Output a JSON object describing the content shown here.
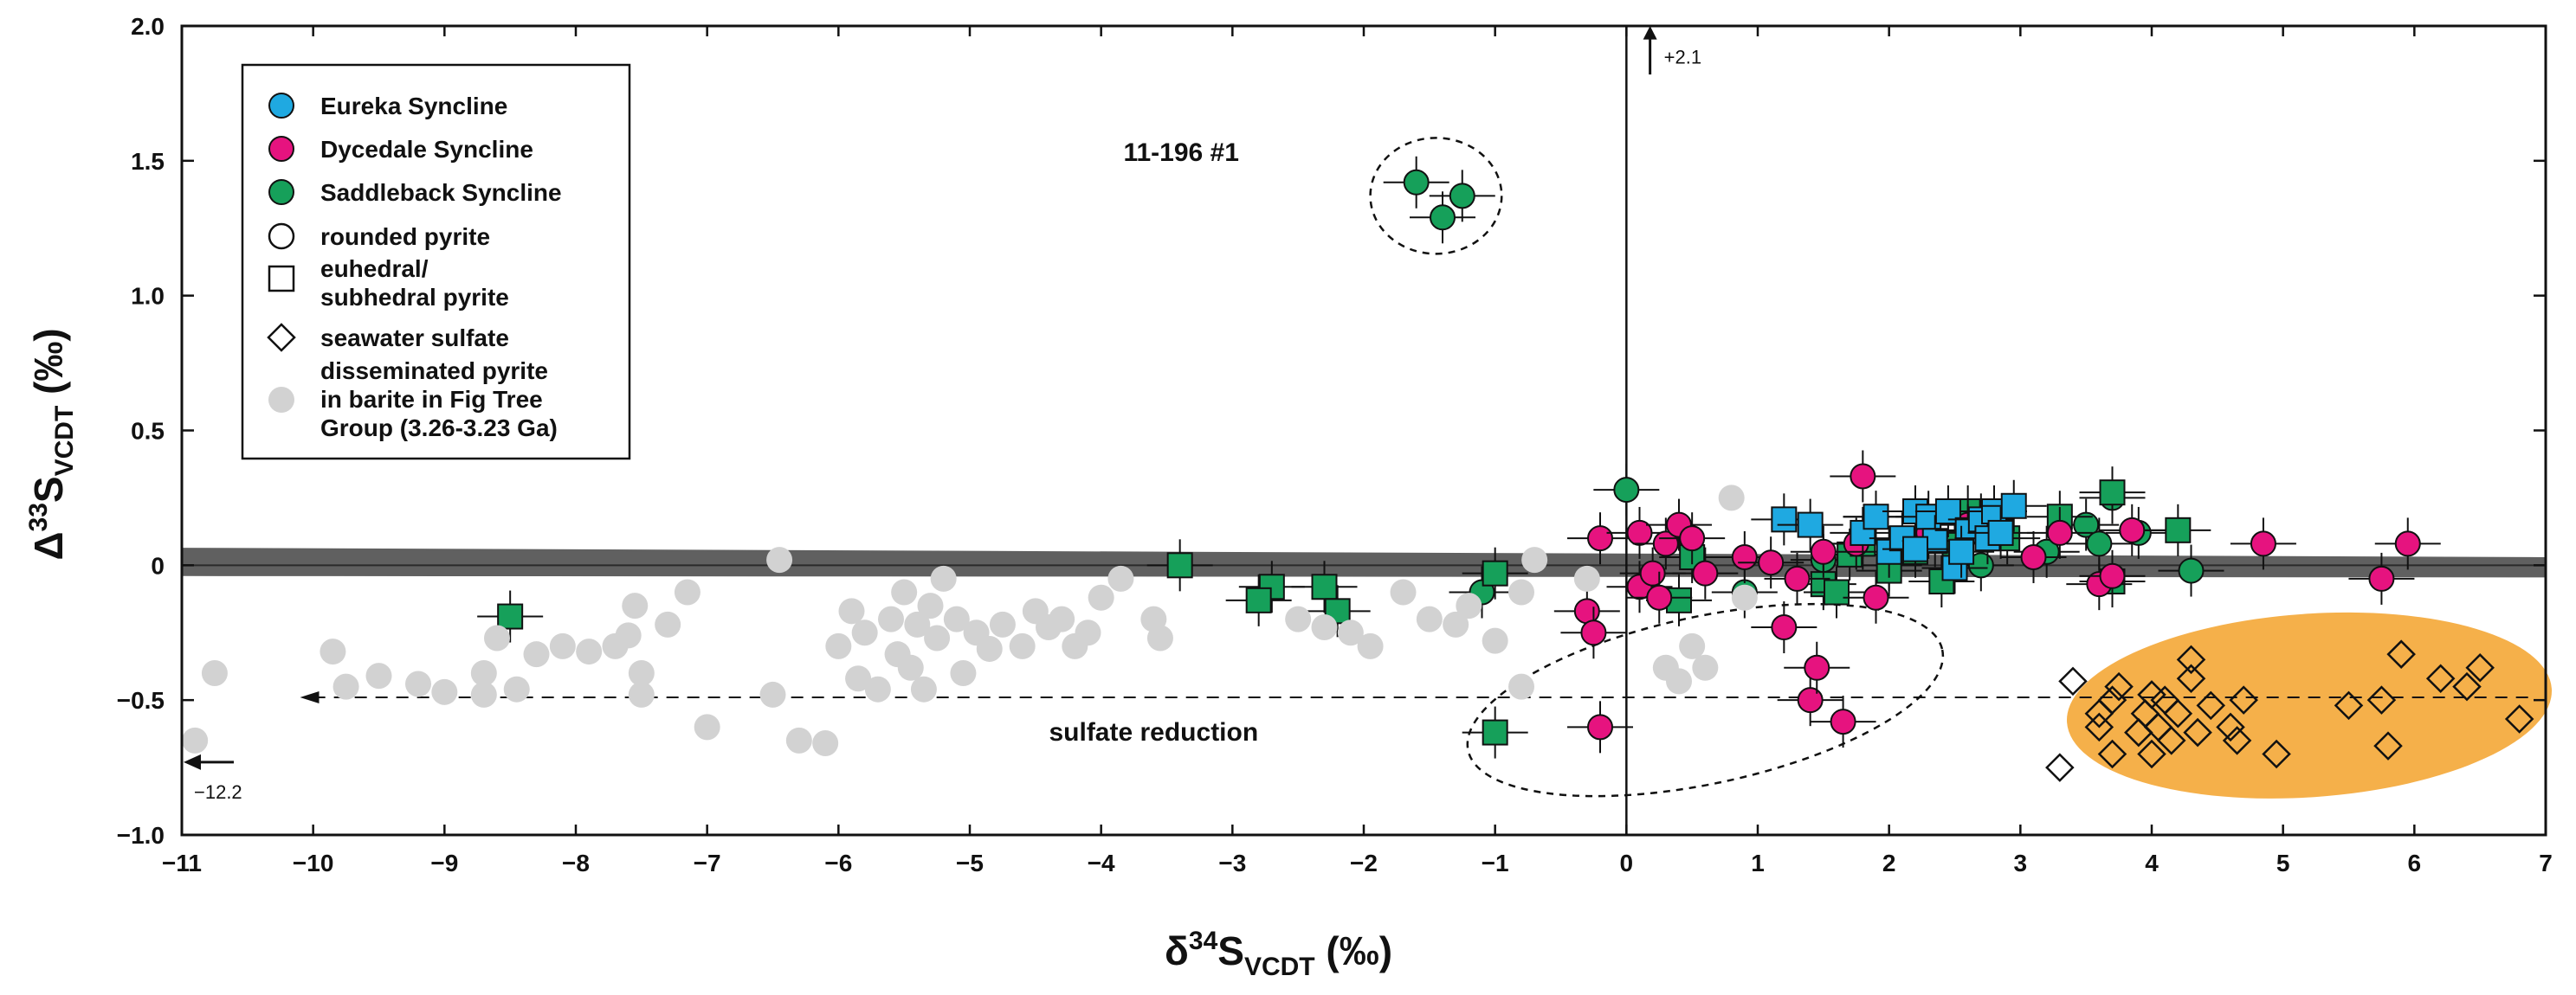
{
  "chart_data": {
    "type": "scatter",
    "title": "",
    "xlabel": {
      "main": "δ",
      "sup": "34",
      "mid": "S",
      "sub": "VCDT",
      "unit": " (‰)"
    },
    "ylabel": {
      "main": "Δ",
      "sup": "33",
      "mid": "S",
      "sub": "VCDT",
      "unit": " (‰)"
    },
    "xlim": [
      -11,
      7
    ],
    "ylim": [
      -1.0,
      2.0
    ],
    "xticks": [
      -11,
      -10,
      -9,
      -8,
      -7,
      -6,
      -5,
      -4,
      -3,
      -2,
      -1,
      0,
      1,
      2,
      3,
      4,
      5,
      6,
      7
    ],
    "xtick_labels": [
      "−11",
      "−10",
      "−9",
      "−8",
      "−7",
      "−6",
      "−5",
      "−4",
      "−3",
      "−2",
      "−1",
      "0",
      "1",
      "2",
      "3",
      "4",
      "5",
      "6",
      "7"
    ],
    "yticks": [
      -1.0,
      -0.5,
      0,
      0.5,
      1.0,
      1.5,
      2.0
    ],
    "ytick_labels": [
      "−1.0",
      "−0.5",
      "0",
      "0.5",
      "1.0",
      "1.5",
      "2.0"
    ],
    "colors": {
      "eureka": "#1fa9e1",
      "dycedale": "#e6137f",
      "saddleback": "#16a05a",
      "fig_tree": "#d2d2d2",
      "seawater_field": "#f5b04a",
      "mdf_band": "#606060"
    },
    "legend": {
      "position": "top-left",
      "entries": [
        {
          "key": "eureka",
          "label": "Eureka Syncline",
          "marker": "circle",
          "color": "#1fa9e1"
        },
        {
          "key": "dycedale",
          "label": "Dycedale Syncline",
          "marker": "circle",
          "color": "#e6137f"
        },
        {
          "key": "saddleback",
          "label": "Saddleback Syncline",
          "marker": "circle",
          "color": "#16a05a"
        },
        {
          "key": "rounded",
          "label": "rounded pyrite",
          "marker": "circle-open"
        },
        {
          "key": "euhedral",
          "label": [
            "euhedral/",
            "subhedral pyrite"
          ],
          "marker": "square-open"
        },
        {
          "key": "seawater",
          "label": "seawater sulfate",
          "marker": "diamond-open"
        },
        {
          "key": "figtree",
          "label": [
            "disseminated pyrite",
            "in barite in Fig Tree",
            "Group (3.26-3.23 Ga)"
          ],
          "marker": "circle-gray"
        }
      ]
    },
    "annotations": {
      "cluster_label": "11-196 #1",
      "sulfate_reduction": "sulfate reduction",
      "arrow_up_label": "+2.1",
      "arrow_left_label": "−12.2"
    },
    "series": [
      {
        "name": "Saddleback Syncline — rounded pyrite",
        "marker": "circle",
        "color": "#16a05a",
        "points": [
          [
            -1.6,
            1.42
          ],
          [
            -1.4,
            1.29
          ],
          [
            -1.25,
            1.37
          ],
          [
            0,
            0.28
          ],
          [
            -1.1,
            -0.1
          ],
          [
            0.9,
            -0.1
          ],
          [
            1.5,
            0.02
          ],
          [
            2.0,
            0.0
          ],
          [
            3.2,
            0.05
          ],
          [
            3.5,
            0.15
          ],
          [
            3.6,
            0.08
          ],
          [
            3.7,
            0.25
          ],
          [
            4.3,
            -0.02
          ],
          [
            3.9,
            0.12
          ],
          [
            2.7,
            0.0
          ]
        ]
      },
      {
        "name": "Saddleback Syncline — euhedral pyrite",
        "marker": "square",
        "color": "#16a05a",
        "points": [
          [
            -8.5,
            -0.19
          ],
          [
            -3.4,
            0.0
          ],
          [
            -2.7,
            -0.08
          ],
          [
            -2.8,
            -0.13
          ],
          [
            -2.3,
            -0.08
          ],
          [
            -2.2,
            -0.17
          ],
          [
            -1.0,
            -0.03
          ],
          [
            -1.0,
            -0.62
          ],
          [
            0.4,
            -0.13
          ],
          [
            0.5,
            0.03
          ],
          [
            1.5,
            -0.07
          ],
          [
            1.6,
            -0.1
          ],
          [
            1.7,
            0.04
          ],
          [
            1.8,
            0.08
          ],
          [
            2.0,
            -0.02
          ],
          [
            2.2,
            0.05
          ],
          [
            2.5,
            0.08
          ],
          [
            2.6,
            0.2
          ],
          [
            2.9,
            0.1
          ],
          [
            3.3,
            0.18
          ],
          [
            3.7,
            0.27
          ],
          [
            3.7,
            -0.06
          ],
          [
            4.2,
            0.13
          ],
          [
            2.4,
            -0.06
          ]
        ]
      },
      {
        "name": "Dycedale Syncline — rounded pyrite",
        "marker": "circle",
        "color": "#e6137f",
        "points": [
          [
            -0.2,
            0.1
          ],
          [
            -0.3,
            -0.17
          ],
          [
            -0.25,
            -0.25
          ],
          [
            -0.2,
            -0.6
          ],
          [
            0.1,
            -0.08
          ],
          [
            0.1,
            0.12
          ],
          [
            0.3,
            0.08
          ],
          [
            0.4,
            0.15
          ],
          [
            0.5,
            0.1
          ],
          [
            0.6,
            -0.03
          ],
          [
            0.9,
            0.03
          ],
          [
            1.1,
            0.01
          ],
          [
            1.2,
            -0.23
          ],
          [
            1.3,
            -0.05
          ],
          [
            1.4,
            -0.5
          ],
          [
            1.45,
            -0.38
          ],
          [
            1.65,
            -0.58
          ],
          [
            1.75,
            0.08
          ],
          [
            1.8,
            0.33
          ],
          [
            1.9,
            0.18
          ],
          [
            1.9,
            -0.12
          ],
          [
            2.3,
            0.12
          ],
          [
            2.6,
            0.15
          ],
          [
            3.1,
            0.03
          ],
          [
            3.3,
            0.12
          ],
          [
            3.6,
            -0.07
          ],
          [
            3.7,
            -0.04
          ],
          [
            3.85,
            0.13
          ],
          [
            4.85,
            0.08
          ],
          [
            5.75,
            -0.05
          ],
          [
            5.95,
            0.08
          ],
          [
            0.2,
            -0.03
          ],
          [
            0.25,
            -0.12
          ],
          [
            1.5,
            0.05
          ]
        ]
      },
      {
        "name": "Eureka Syncline — euhedral pyrite",
        "marker": "square",
        "color": "#1fa9e1",
        "points": [
          [
            1.2,
            0.17
          ],
          [
            1.4,
            0.15
          ],
          [
            1.8,
            0.12
          ],
          [
            1.9,
            0.18
          ],
          [
            2.0,
            0.05
          ],
          [
            2.1,
            0.1
          ],
          [
            2.2,
            0.2
          ],
          [
            2.3,
            0.18
          ],
          [
            2.35,
            0.09
          ],
          [
            2.45,
            0.2
          ],
          [
            2.5,
            -0.01
          ],
          [
            2.6,
            0.13
          ],
          [
            2.7,
            0.17
          ],
          [
            2.75,
            0.1
          ],
          [
            2.8,
            0.2
          ],
          [
            2.85,
            0.12
          ],
          [
            2.95,
            0.22
          ],
          [
            2.2,
            0.06
          ],
          [
            2.55,
            0.05
          ]
        ]
      },
      {
        "name": "Seawater sulfate",
        "marker": "diamond",
        "color": "#ffffff",
        "points": [
          [
            3.3,
            -0.75
          ],
          [
            3.4,
            -0.43
          ],
          [
            3.6,
            -0.55
          ],
          [
            3.6,
            -0.6
          ],
          [
            3.7,
            -0.5
          ],
          [
            3.7,
            -0.7
          ],
          [
            3.9,
            -0.62
          ],
          [
            3.95,
            -0.55
          ],
          [
            4.0,
            -0.48
          ],
          [
            4.0,
            -0.7
          ],
          [
            4.1,
            -0.5
          ],
          [
            4.15,
            -0.65
          ],
          [
            4.2,
            -0.55
          ],
          [
            4.3,
            -0.35
          ],
          [
            4.3,
            -0.42
          ],
          [
            4.35,
            -0.62
          ],
          [
            4.45,
            -0.52
          ],
          [
            4.6,
            -0.6
          ],
          [
            4.65,
            -0.65
          ],
          [
            4.7,
            -0.5
          ],
          [
            4.95,
            -0.7
          ],
          [
            5.5,
            -0.52
          ],
          [
            5.75,
            -0.5
          ],
          [
            5.8,
            -0.67
          ],
          [
            5.9,
            -0.33
          ],
          [
            6.2,
            -0.42
          ],
          [
            6.4,
            -0.45
          ],
          [
            6.5,
            -0.38
          ],
          [
            6.8,
            -0.57
          ],
          [
            3.75,
            -0.45
          ],
          [
            4.05,
            -0.6
          ]
        ]
      },
      {
        "name": "Fig Tree Group disseminated pyrite in barite",
        "marker": "circle",
        "color": "#d2d2d2",
        "points": [
          [
            -10.9,
            -0.65
          ],
          [
            -10.75,
            -0.4
          ],
          [
            -9.85,
            -0.32
          ],
          [
            -9.75,
            -0.45
          ],
          [
            -9.5,
            -0.41
          ],
          [
            -9.2,
            -0.44
          ],
          [
            -9.0,
            -0.47
          ],
          [
            -8.7,
            -0.4
          ],
          [
            -8.7,
            -0.48
          ],
          [
            -8.6,
            -0.27
          ],
          [
            -8.45,
            -0.46
          ],
          [
            -8.3,
            -0.33
          ],
          [
            -8.1,
            -0.3
          ],
          [
            -7.9,
            -0.32
          ],
          [
            -7.7,
            -0.3
          ],
          [
            -7.6,
            -0.26
          ],
          [
            -7.5,
            -0.4
          ],
          [
            -7.55,
            -0.15
          ],
          [
            -7.5,
            -0.48
          ],
          [
            -7.3,
            -0.22
          ],
          [
            -7.15,
            -0.1
          ],
          [
            -7.0,
            -0.6
          ],
          [
            -6.5,
            -0.48
          ],
          [
            -6.45,
            0.02
          ],
          [
            -6.3,
            -0.65
          ],
          [
            -6.1,
            -0.66
          ],
          [
            -6.0,
            -0.3
          ],
          [
            -5.9,
            -0.17
          ],
          [
            -5.85,
            -0.42
          ],
          [
            -5.8,
            -0.25
          ],
          [
            -5.7,
            -0.46
          ],
          [
            -5.6,
            -0.2
          ],
          [
            -5.55,
            -0.33
          ],
          [
            -5.5,
            -0.1
          ],
          [
            -5.45,
            -0.38
          ],
          [
            -5.4,
            -0.22
          ],
          [
            -5.35,
            -0.46
          ],
          [
            -5.3,
            -0.15
          ],
          [
            -5.25,
            -0.27
          ],
          [
            -5.2,
            -0.05
          ],
          [
            -5.1,
            -0.2
          ],
          [
            -5.05,
            -0.4
          ],
          [
            -4.95,
            -0.25
          ],
          [
            -4.85,
            -0.31
          ],
          [
            -4.75,
            -0.22
          ],
          [
            -4.6,
            -0.3
          ],
          [
            -4.5,
            -0.17
          ],
          [
            -4.4,
            -0.23
          ],
          [
            -4.3,
            -0.2
          ],
          [
            -4.2,
            -0.3
          ],
          [
            -4.1,
            -0.25
          ],
          [
            -4.0,
            -0.12
          ],
          [
            -3.85,
            -0.05
          ],
          [
            -3.6,
            -0.2
          ],
          [
            -3.55,
            -0.27
          ],
          [
            -2.5,
            -0.2
          ],
          [
            -2.3,
            -0.23
          ],
          [
            -2.1,
            -0.25
          ],
          [
            -1.95,
            -0.3
          ],
          [
            -1.7,
            -0.1
          ],
          [
            -1.5,
            -0.2
          ],
          [
            -1.3,
            -0.22
          ],
          [
            -1.2,
            -0.15
          ],
          [
            -1.0,
            -0.28
          ],
          [
            -0.8,
            -0.1
          ],
          [
            -0.7,
            0.02
          ],
          [
            -0.3,
            -0.05
          ],
          [
            0.3,
            -0.38
          ],
          [
            0.4,
            -0.43
          ],
          [
            0.6,
            -0.38
          ],
          [
            0.8,
            0.25
          ],
          [
            0.5,
            -0.3
          ],
          [
            0.9,
            -0.12
          ],
          [
            -0.8,
            -0.45
          ]
        ]
      }
    ]
  }
}
